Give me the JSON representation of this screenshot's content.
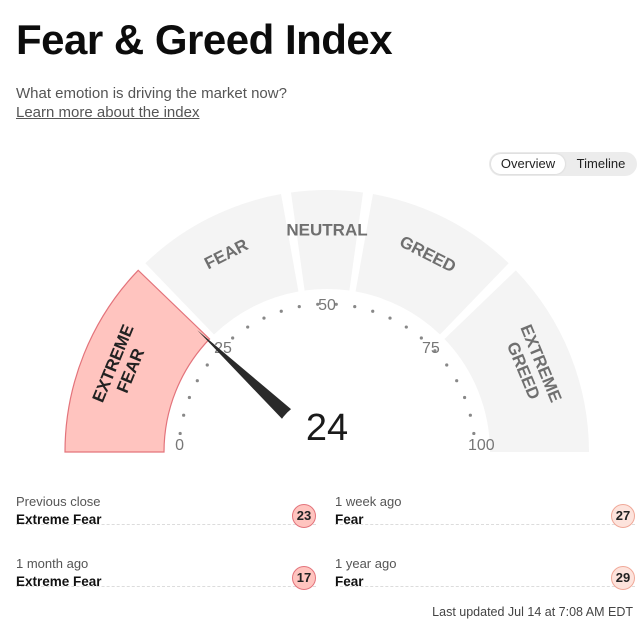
{
  "header": {
    "title": "Fear & Greed Index",
    "subtitle": "What emotion is driving the market now?",
    "learn_more": "Learn more about the index"
  },
  "view_toggle": {
    "options": [
      "Overview",
      "Timeline"
    ],
    "selected": "Overview"
  },
  "gauge": {
    "value": 24,
    "value_text": "24",
    "segments": [
      {
        "label_lines": [
          "EXTREME",
          "FEAR"
        ],
        "range": [
          0,
          25
        ],
        "active": true
      },
      {
        "label_lines": [
          "FEAR"
        ],
        "range": [
          25,
          45
        ],
        "active": false
      },
      {
        "label_lines": [
          "NEUTRAL"
        ],
        "range": [
          45,
          55
        ],
        "active": false
      },
      {
        "label_lines": [
          "GREED"
        ],
        "range": [
          55,
          75
        ],
        "active": false
      },
      {
        "label_lines": [
          "EXTREME",
          "GREED"
        ],
        "range": [
          75,
          100
        ],
        "active": false
      }
    ],
    "ticks": [
      "0",
      "25",
      "50",
      "75",
      "100"
    ],
    "colors": {
      "active_fill": "#ffc4bf",
      "active_stroke": "#e3737b",
      "inactive_fill": "#f4f4f4",
      "label": "#6f6f6f",
      "needle": "#2a2a2a",
      "dots": "#888888"
    }
  },
  "history": [
    {
      "label": "Previous close",
      "value": "Extreme Fear",
      "score": "23",
      "level": "extreme-fear"
    },
    {
      "label": "1 week ago",
      "value": "Fear",
      "score": "27",
      "level": "fear"
    },
    {
      "label": "1 month ago",
      "value": "Extreme Fear",
      "score": "17",
      "level": "extreme-fear"
    },
    {
      "label": "1 year ago",
      "value": "Fear",
      "score": "29",
      "level": "fear"
    }
  ],
  "last_updated": "Last updated Jul 14 at 7:08 AM EDT"
}
